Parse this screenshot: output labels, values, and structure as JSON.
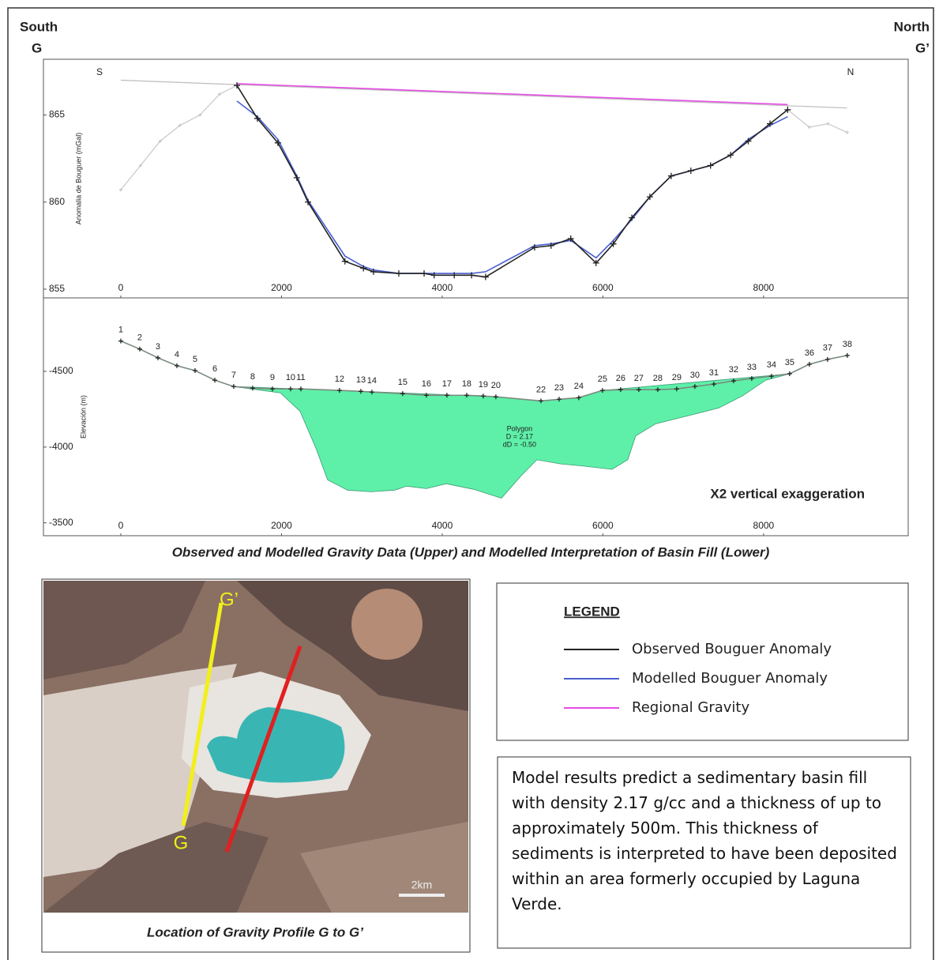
{
  "header": {
    "left_direction": "South",
    "left_point": "G",
    "right_direction": "North",
    "right_point": "G’"
  },
  "chart_data": [
    {
      "type": "line",
      "ylabel": "Anomalia de Bouguer (mGal)",
      "left_label": "S",
      "right_label": "N",
      "xlim": [
        -963,
        9800
      ],
      "ylim": [
        854.5,
        868.2
      ],
      "xticks": [
        0,
        2000,
        4000,
        6000,
        8000
      ],
      "yticks": [
        855,
        860,
        865
      ],
      "series": [
        {
          "color": "#c8c8c8",
          "markers": true,
          "x": [
            0,
            245,
            490,
            735,
            985,
            1230,
            1445,
            null,
            8300,
            8570,
            8800,
            9040
          ],
          "values": [
            860.7,
            862.1,
            863.5,
            864.4,
            865.0,
            866.2,
            866.7,
            null,
            865.3,
            864.3,
            864.5,
            864.0
          ]
        },
        {
          "color": "#bdbdbd",
          "markers": false,
          "x": [
            0,
            9040
          ],
          "values": [
            867.0,
            865.4
          ]
        },
        {
          "name": "Regional Gravity",
          "color": "#e64ce6",
          "markers": false,
          "x": [
            1445,
            8300
          ],
          "values": [
            866.8,
            865.6
          ]
        },
        {
          "name": "Modelled Bouguer Anomaly",
          "color": "#4a5fd0",
          "markers": false,
          "x": [
            1445,
            1700,
            1955,
            2190,
            2330,
            2790,
            3020,
            3145,
            3460,
            3775,
            3900,
            4150,
            4365,
            4540,
            5150,
            5355,
            5600,
            5915,
            6130,
            6360,
            6585,
            6850,
            7095,
            7340,
            7590,
            7810,
            8080,
            8300
          ],
          "values": [
            865.8,
            864.9,
            863.6,
            861.5,
            860.1,
            856.9,
            856.3,
            856.1,
            855.9,
            855.9,
            855.9,
            855.9,
            855.9,
            856.0,
            857.5,
            857.6,
            857.8,
            856.8,
            857.8,
            859.0,
            860.3,
            861.5,
            861.8,
            862.1,
            862.7,
            863.6,
            864.4,
            864.9
          ]
        },
        {
          "name": "Observed Bouguer Anomaly",
          "color": "#222222",
          "markers": true,
          "x": [
            1445,
            1700,
            1955,
            2190,
            2330,
            2790,
            3020,
            3145,
            3460,
            3775,
            3900,
            4150,
            4365,
            4540,
            5150,
            5355,
            5600,
            5915,
            6130,
            6360,
            6585,
            6850,
            7095,
            7340,
            7590,
            7810,
            8080,
            8300
          ],
          "values": [
            866.7,
            864.8,
            863.4,
            861.4,
            860.0,
            856.6,
            856.2,
            856.0,
            855.9,
            855.9,
            855.8,
            855.8,
            855.8,
            855.7,
            857.4,
            857.5,
            857.9,
            856.5,
            857.6,
            859.1,
            860.3,
            861.5,
            861.8,
            862.1,
            862.7,
            863.5,
            864.5,
            865.3
          ]
        }
      ]
    },
    {
      "type": "profile",
      "ylabel": "Elevación (m)",
      "annotation": "X2 vertical exaggeration",
      "xlim": [
        -963,
        9800
      ],
      "ylim": [
        -4985,
        -3415
      ],
      "xticks": [
        0,
        2000,
        4000,
        6000,
        8000
      ],
      "yticks": [
        -4500,
        -4000,
        -3500
      ],
      "polygon": {
        "label": "Polygon",
        "density": "D = 2.17",
        "contrast": "dD = -0.50",
        "color": "#5ef0a8",
        "x": [
          1405,
          2722,
          4668,
          5229,
          5700,
          5995,
          8324,
          8029,
          7735,
          7440,
          7047,
          6654,
          6408,
          6310,
          6113,
          5769,
          5474,
          5179,
          4983,
          4737,
          4393,
          4049,
          3803,
          3558,
          3410,
          3115,
          2821,
          2575,
          2427,
          2231,
          1985
        ],
        "values": [
          -4400,
          -4374,
          -4332,
          -4305,
          -4326,
          -4374,
          -4484,
          -4442,
          -4337,
          -4258,
          -4205,
          -4153,
          -4074,
          -3916,
          -3853,
          -3874,
          -3889,
          -3916,
          -3811,
          -3663,
          -3721,
          -3758,
          -3726,
          -3742,
          -3716,
          -3705,
          -3716,
          -3784,
          -3995,
          -4237,
          -4358
        ]
      },
      "series": [
        {
          "color": "#7a8c7f",
          "markers": true,
          "x": [
            0,
            236,
            462,
            698,
            924,
            1170,
            1405,
            1641,
            1887,
            2113,
            2241,
            2722,
            2988,
            3125,
            3508,
            3803,
            4059,
            4305,
            4511,
            4668,
            5229,
            5455,
            5700,
            5995,
            6221,
            6447,
            6683,
            6919,
            7145,
            7381,
            7627,
            7853,
            8098,
            8324,
            8570,
            8796,
            9042
          ],
          "values": [
            -4700,
            -4647,
            -4589,
            -4537,
            -4505,
            -4442,
            -4400,
            -4389,
            -4384,
            -4384,
            -4384,
            -4374,
            -4368,
            -4363,
            -4353,
            -4342,
            -4342,
            -4342,
            -4337,
            -4332,
            -4305,
            -4316,
            -4326,
            -4374,
            -4379,
            -4379,
            -4379,
            -4384,
            -4400,
            -4416,
            -4437,
            -4453,
            -4468,
            -4484,
            -4547,
            -4579,
            -4605
          ],
          "point_labels": [
            "1",
            "2",
            "3",
            "4",
            "5",
            "6",
            "7",
            "8",
            "9",
            "10",
            "11",
            "12",
            "13",
            "14",
            "15",
            "16",
            "17",
            "18",
            "19",
            "20",
            "22",
            "23",
            "24",
            "25",
            "26",
            "27",
            "28",
            "29",
            "30",
            "31",
            "32",
            "33",
            "34",
            "35",
            "36",
            "37",
            "38"
          ]
        }
      ]
    }
  ],
  "caption": "Observed and Modelled Gravity Data (Upper) and Modelled Interpretation of Basin Fill (Lower)",
  "map": {
    "line_end_label": "G’",
    "line_start_label": "G",
    "scale_label": "2km",
    "caption": "Location of Gravity Profile G to G’"
  },
  "legend": {
    "title": "LEGEND"
  },
  "note": "Model results predict a sedimentary basin fill with density 2.17 g/cc and a thickness of up to approximately 500m.  This thickness of sediments is interpreted to have been deposited within an area formerly occupied by Laguna Verde."
}
